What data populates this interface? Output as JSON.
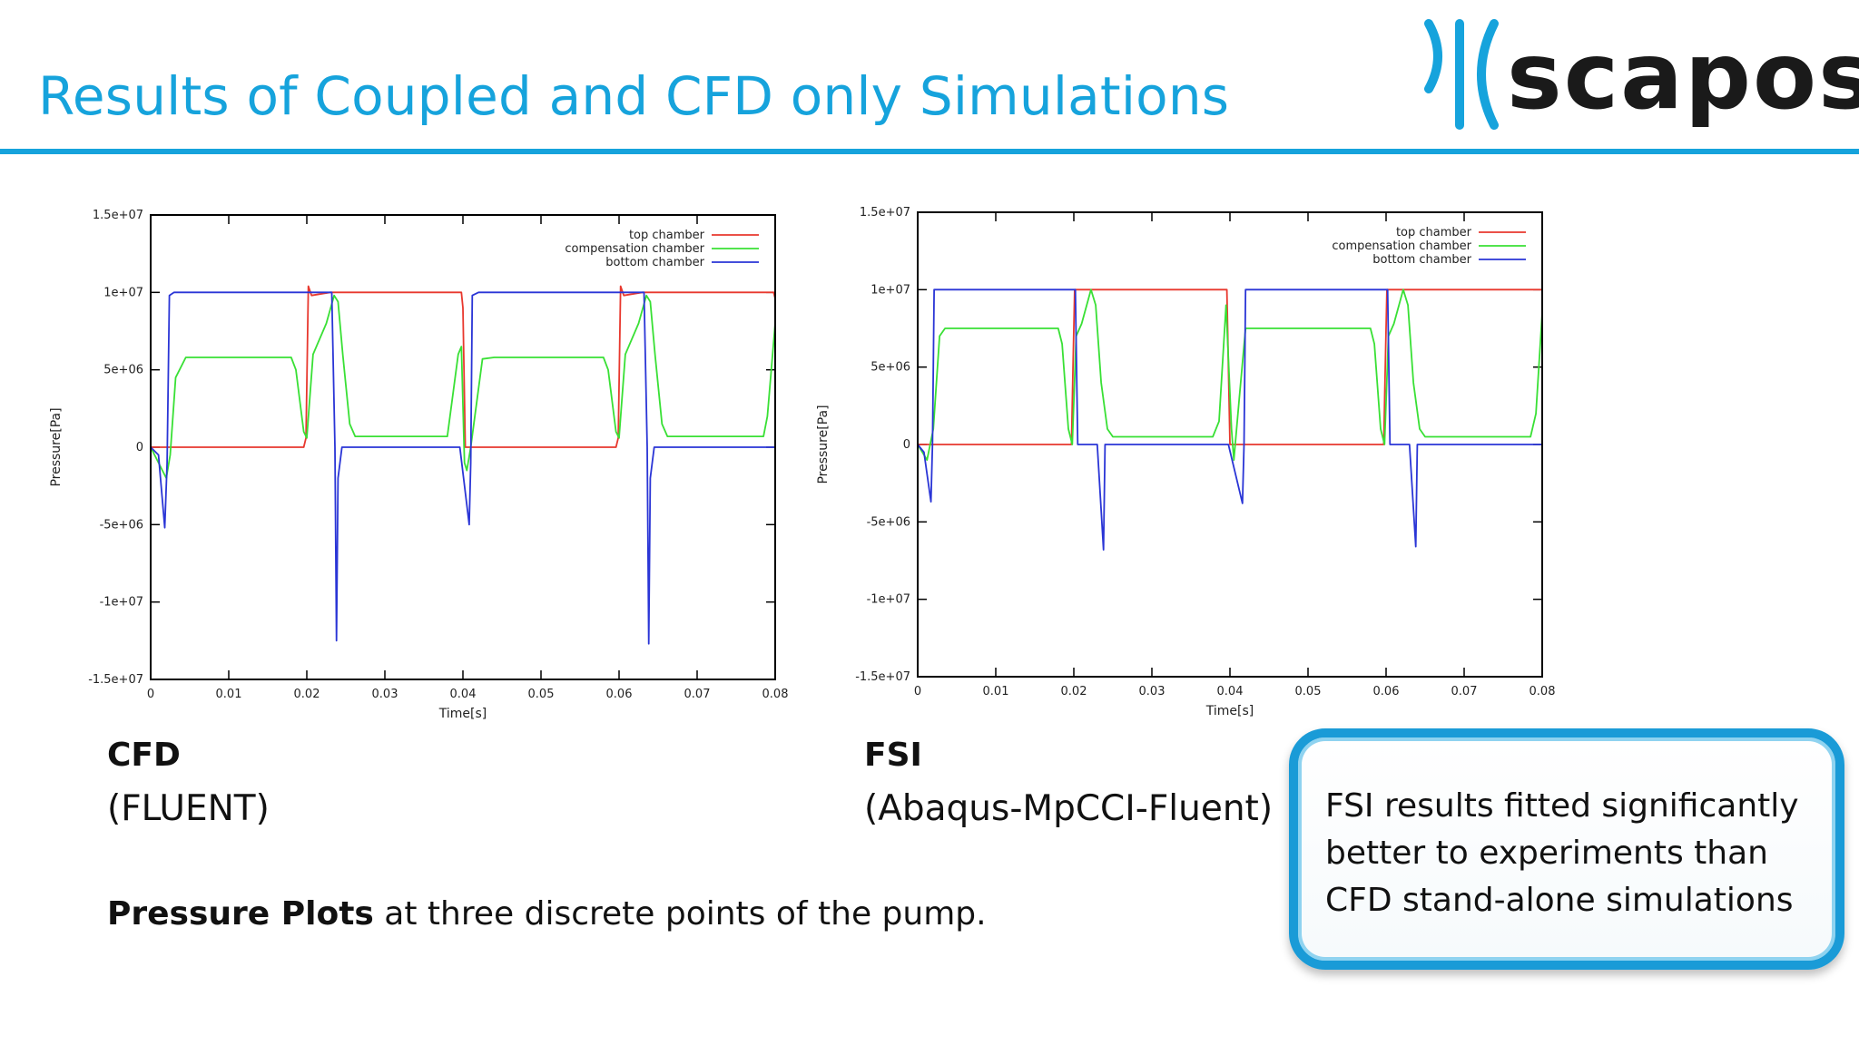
{
  "slide": {
    "title": "Results of Coupled and CFD only Simulations",
    "logo_text": "scapos",
    "caption_bold": "Pressure Plots",
    "caption_rest": " at three discrete points of the pump.",
    "callout_text": "FSI results fitted significantly better to experiments than CFD stand-alone simulations"
  },
  "labels": {
    "left": {
      "name": "CFD",
      "tool": "(FLUENT)"
    },
    "right": {
      "name": "FSI",
      "tool": "(Abaqus-MpCCI-Fluent)"
    }
  },
  "colors": {
    "title": "#16a3dc",
    "top_chamber": "#e8382e",
    "compensation_chamber": "#39e035",
    "bottom_chamber": "#2a35d6"
  },
  "chart_data": [
    {
      "type": "line",
      "xlabel": "Time[s]",
      "ylabel": "Pressure[Pa]",
      "xlim": [
        0,
        0.08
      ],
      "ylim": [
        -15000000,
        15000000
      ],
      "x_ticks": [
        "0",
        "0.01",
        "0.02",
        "0.03",
        "0.04",
        "0.05",
        "0.06",
        "0.07",
        "0.08"
      ],
      "y_ticks": [
        "1.5e+07",
        "1e+07",
        "5e+06",
        "0",
        "-5e+06",
        "-1e+07",
        "-1.5e+07"
      ],
      "legend_position": "top-right",
      "series": [
        {
          "name": "top chamber",
          "color": "#e8382e",
          "points": [
            [
              0,
              0
            ],
            [
              0.0196,
              0
            ],
            [
              0.0199,
              600000
            ],
            [
              0.0202,
              10400000
            ],
            [
              0.0206,
              9800000
            ],
            [
              0.023,
              10000000
            ],
            [
              0.0398,
              10000000
            ],
            [
              0.04,
              9000000
            ],
            [
              0.0403,
              0
            ],
            [
              0.0596,
              0
            ],
            [
              0.0599,
              600000
            ],
            [
              0.0602,
              10400000
            ],
            [
              0.0606,
              9800000
            ],
            [
              0.063,
              10000000
            ],
            [
              0.0798,
              10000000
            ],
            [
              0.08,
              9600000
            ]
          ]
        },
        {
          "name": "compensation chamber",
          "color": "#39e035",
          "points": [
            [
              0,
              0
            ],
            [
              0.0015,
              -1500000
            ],
            [
              0.002,
              -2000000
            ],
            [
              0.0025,
              -500000
            ],
            [
              0.0032,
              4500000
            ],
            [
              0.0045,
              5800000
            ],
            [
              0.018,
              5800000
            ],
            [
              0.0186,
              5000000
            ],
            [
              0.0196,
              1000000
            ],
            [
              0.02,
              600000
            ],
            [
              0.0208,
              6000000
            ],
            [
              0.0225,
              8000000
            ],
            [
              0.0235,
              9800000
            ],
            [
              0.024,
              9400000
            ],
            [
              0.0246,
              6000000
            ],
            [
              0.0255,
              1500000
            ],
            [
              0.0262,
              700000
            ],
            [
              0.038,
              700000
            ],
            [
              0.0394,
              6000000
            ],
            [
              0.0398,
              6500000
            ],
            [
              0.0402,
              -1000000
            ],
            [
              0.0405,
              -1500000
            ],
            [
              0.041,
              0
            ],
            [
              0.0425,
              5700000
            ],
            [
              0.044,
              5800000
            ],
            [
              0.058,
              5800000
            ],
            [
              0.0586,
              5000000
            ],
            [
              0.0596,
              1000000
            ],
            [
              0.06,
              600000
            ],
            [
              0.0608,
              6000000
            ],
            [
              0.0625,
              8000000
            ],
            [
              0.0635,
              9800000
            ],
            [
              0.064,
              9400000
            ],
            [
              0.0646,
              6000000
            ],
            [
              0.0655,
              1500000
            ],
            [
              0.0662,
              700000
            ],
            [
              0.0785,
              700000
            ],
            [
              0.079,
              2000000
            ],
            [
              0.08,
              8000000
            ]
          ]
        },
        {
          "name": "bottom chamber",
          "color": "#2a35d6",
          "points": [
            [
              0,
              0
            ],
            [
              0.001,
              -500000
            ],
            [
              0.0018,
              -5200000
            ],
            [
              0.0021,
              -1000000
            ],
            [
              0.0024,
              9800000
            ],
            [
              0.003,
              10000000
            ],
            [
              0.0232,
              10000000
            ],
            [
              0.0236,
              0
            ],
            [
              0.0238,
              -12500000
            ],
            [
              0.024,
              -2000000
            ],
            [
              0.0245,
              0
            ],
            [
              0.0396,
              0
            ],
            [
              0.0408,
              -5000000
            ],
            [
              0.041,
              -1000000
            ],
            [
              0.0412,
              9800000
            ],
            [
              0.042,
              10000000
            ],
            [
              0.0632,
              10000000
            ],
            [
              0.0636,
              0
            ],
            [
              0.0638,
              -12700000
            ],
            [
              0.064,
              -2000000
            ],
            [
              0.0645,
              0
            ],
            [
              0.08,
              0
            ]
          ]
        }
      ]
    },
    {
      "type": "line",
      "xlabel": "Time[s]",
      "ylabel": "Pressure[Pa]",
      "xlim": [
        0,
        0.08
      ],
      "ylim": [
        -15000000,
        15000000
      ],
      "x_ticks": [
        "0",
        "0.01",
        "0.02",
        "0.03",
        "0.04",
        "0.05",
        "0.06",
        "0.07",
        "0.08"
      ],
      "y_ticks": [
        "1.5e+07",
        "1e+07",
        "5e+06",
        "0",
        "-5e+06",
        "-1e+07",
        "-1.5e+07"
      ],
      "legend_position": "top-right",
      "series": [
        {
          "name": "top chamber",
          "color": "#e8382e",
          "points": [
            [
              0,
              0
            ],
            [
              0.0197,
              0
            ],
            [
              0.0199,
              5000000
            ],
            [
              0.0201,
              10000000
            ],
            [
              0.0396,
              10000000
            ],
            [
              0.04,
              0
            ],
            [
              0.0597,
              0
            ],
            [
              0.0599,
              5000000
            ],
            [
              0.0601,
              10000000
            ],
            [
              0.08,
              10000000
            ]
          ]
        },
        {
          "name": "compensation chamber",
          "color": "#39e035",
          "points": [
            [
              0,
              0
            ],
            [
              0.0012,
              -1000000
            ],
            [
              0.002,
              1000000
            ],
            [
              0.0028,
              7000000
            ],
            [
              0.0035,
              7500000
            ],
            [
              0.018,
              7500000
            ],
            [
              0.0185,
              6500000
            ],
            [
              0.0193,
              1000000
            ],
            [
              0.0198,
              0
            ],
            [
              0.0203,
              7000000
            ],
            [
              0.021,
              7800000
            ],
            [
              0.0222,
              10000000
            ],
            [
              0.0228,
              9000000
            ],
            [
              0.0235,
              4000000
            ],
            [
              0.0243,
              1000000
            ],
            [
              0.025,
              500000
            ],
            [
              0.0378,
              500000
            ],
            [
              0.0386,
              1500000
            ],
            [
              0.0395,
              9000000
            ],
            [
              0.0402,
              1000000
            ],
            [
              0.0405,
              -1000000
            ],
            [
              0.0412,
              3000000
            ],
            [
              0.042,
              7500000
            ],
            [
              0.058,
              7500000
            ],
            [
              0.0585,
              6500000
            ],
            [
              0.0593,
              1000000
            ],
            [
              0.0598,
              0
            ],
            [
              0.0603,
              7000000
            ],
            [
              0.061,
              7800000
            ],
            [
              0.0622,
              10000000
            ],
            [
              0.0628,
              9000000
            ],
            [
              0.0635,
              4000000
            ],
            [
              0.0643,
              1000000
            ],
            [
              0.065,
              500000
            ],
            [
              0.0785,
              500000
            ],
            [
              0.0792,
              2000000
            ],
            [
              0.08,
              8500000
            ]
          ]
        },
        {
          "name": "bottom chamber",
          "color": "#2a35d6",
          "points": [
            [
              0,
              0
            ],
            [
              0.0008,
              -500000
            ],
            [
              0.0017,
              -3700000
            ],
            [
              0.0019,
              0
            ],
            [
              0.0021,
              10000000
            ],
            [
              0.0202,
              10000000
            ],
            [
              0.0205,
              0
            ],
            [
              0.023,
              0
            ],
            [
              0.0238,
              -6800000
            ],
            [
              0.024,
              0
            ],
            [
              0.0398,
              0
            ],
            [
              0.0416,
              -3800000
            ],
            [
              0.0418,
              0
            ],
            [
              0.042,
              10000000
            ],
            [
              0.0602,
              10000000
            ],
            [
              0.0605,
              0
            ],
            [
              0.063,
              0
            ],
            [
              0.0638,
              -6600000
            ],
            [
              0.064,
              0
            ],
            [
              0.08,
              0
            ]
          ]
        }
      ]
    }
  ]
}
